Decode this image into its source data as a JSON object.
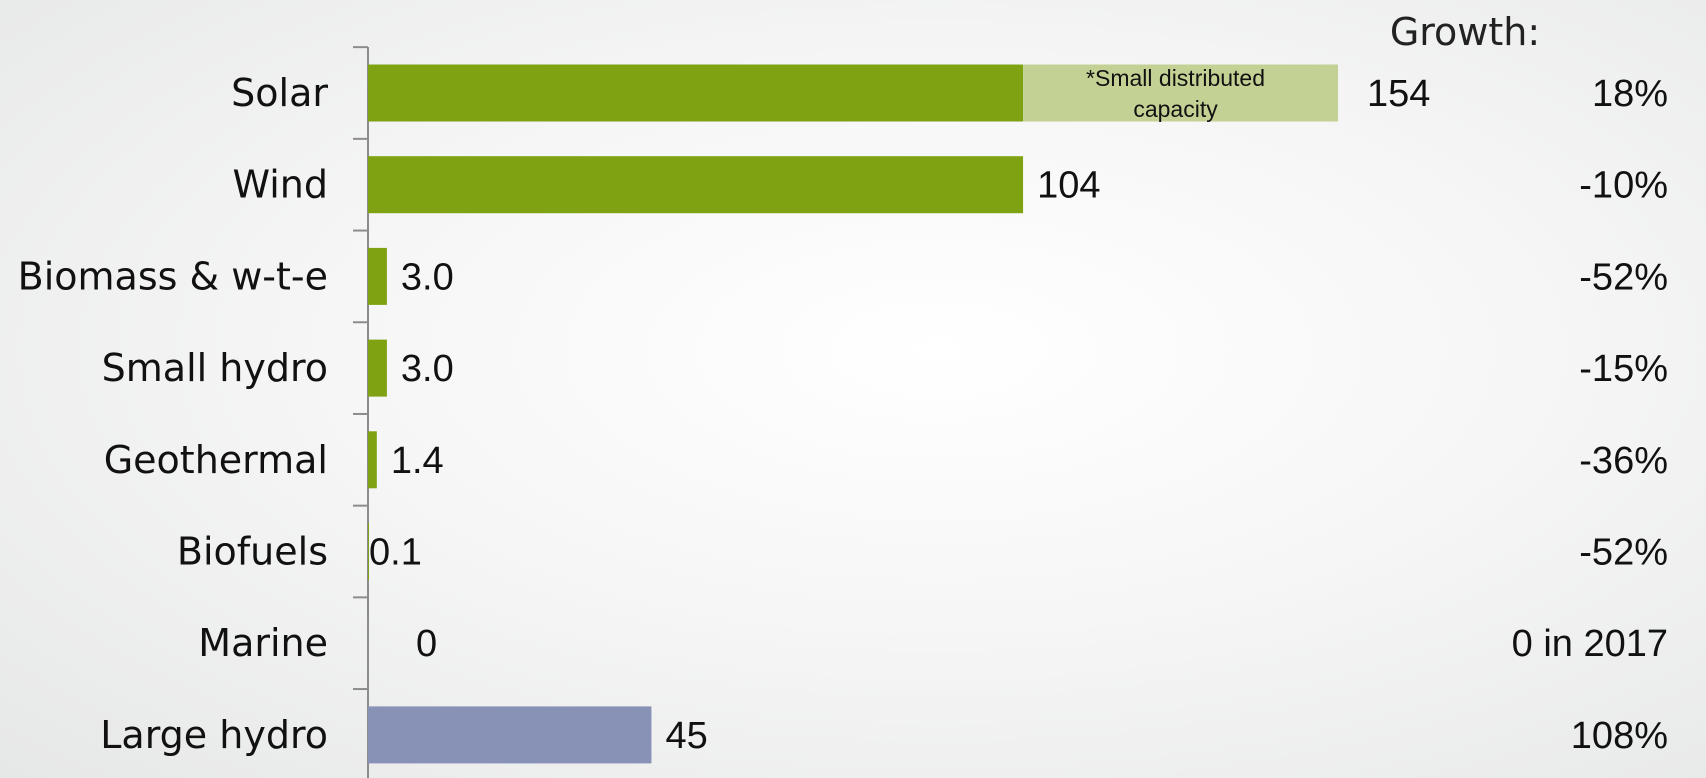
{
  "chart_data": {
    "type": "bar",
    "orientation": "horizontal",
    "growth_header": "Growth:",
    "categories": [
      "Solar",
      "Wind",
      "Biomass & w-t-e",
      "Small hydro",
      "Geothermal",
      "Biofuels",
      "Marine",
      "Large hydro"
    ],
    "values": [
      154,
      104,
      3.0,
      3.0,
      1.4,
      0.1,
      0,
      45
    ],
    "value_labels": [
      "154",
      "104",
      "3.0",
      "3.0",
      "1.4",
      "0.1",
      "0",
      "45"
    ],
    "growth": [
      "18%",
      "-10%",
      "-52%",
      "-15%",
      "-36%",
      "-52%",
      "0 in 2017",
      "108%"
    ],
    "solar_split": {
      "base_value": 104,
      "distributed_value": 50,
      "note_line1": "*Small distributed",
      "note_line2": "capacity"
    },
    "xlim": [
      0,
      160
    ],
    "grid": false,
    "colors": {
      "renewable": "#7ea212",
      "small_distributed": "#c3d294",
      "large_hydro": "#8892b6",
      "axis": "#8c8c8c"
    }
  }
}
